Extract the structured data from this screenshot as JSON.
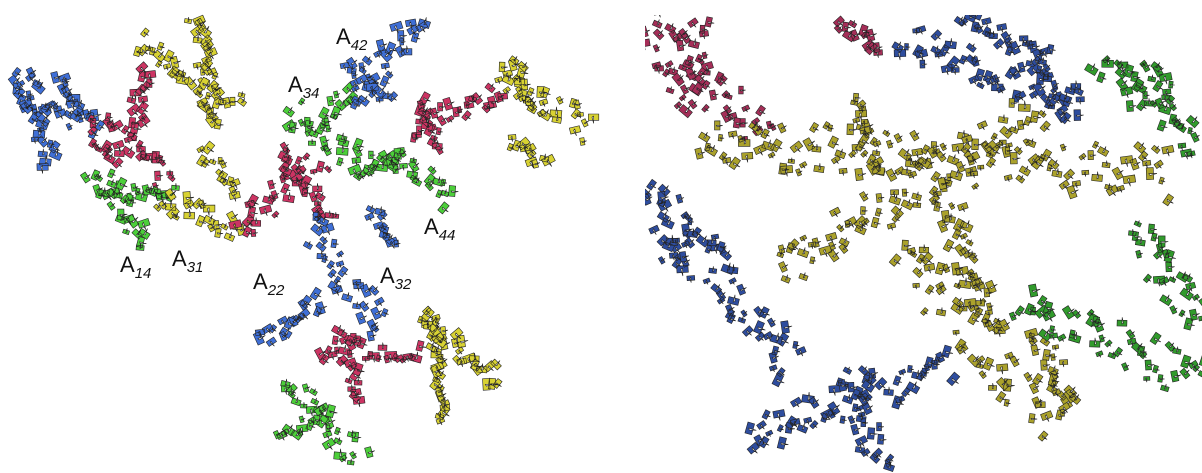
{
  "labels": [
    {
      "main": "A",
      "sub": "42"
    },
    {
      "main": "A",
      "sub": "34"
    },
    {
      "main": "A",
      "sub": "44"
    },
    {
      "main": "A",
      "sub": "14"
    },
    {
      "main": "A",
      "sub": "31"
    },
    {
      "main": "A",
      "sub": "22"
    },
    {
      "main": "A",
      "sub": "32"
    }
  ]
}
